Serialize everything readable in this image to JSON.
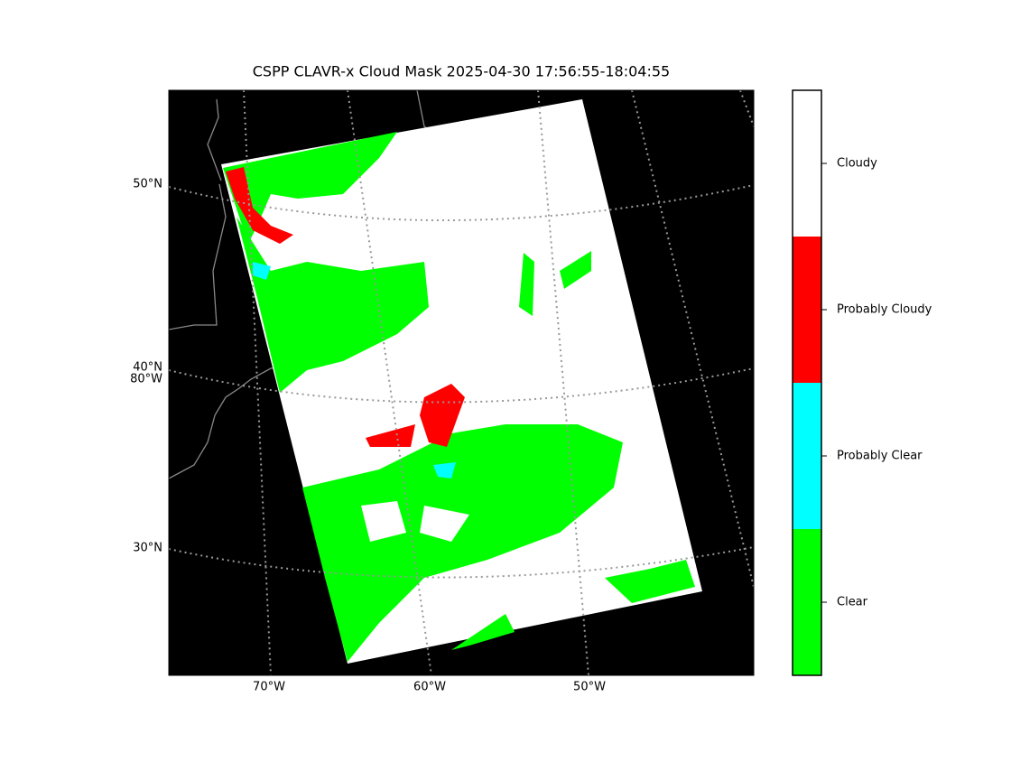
{
  "title": "CSPP CLAVR-x Cloud Mask 2025-04-30 17:56:55-18:04:55",
  "latitude_labels": [
    "50°N",
    "40°N",
    "30°N"
  ],
  "longitude_labels": [
    "80°W",
    "70°W",
    "60°W",
    "50°W"
  ],
  "colorbar": {
    "classes": [
      "Clear",
      "Probably Clear",
      "Probably Cloudy",
      "Cloudy"
    ],
    "colors": [
      "#00ff00",
      "#00ffff",
      "#ff0000",
      "#ffffff"
    ]
  }
}
